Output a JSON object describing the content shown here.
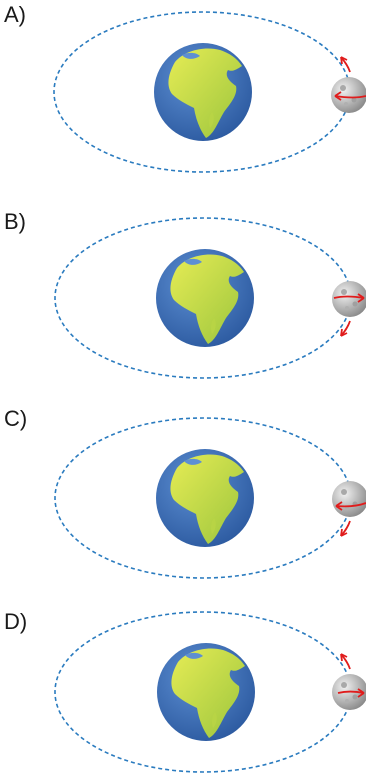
{
  "colors": {
    "orbit": "#2a7bbf",
    "arrow": "#e01c1c",
    "ocean": "#3d6fb6",
    "land": "#d9e34a",
    "land_dark": "#8fbf3a",
    "moon": "#c9c9c9"
  },
  "icons": {
    "planet": "earth-icon",
    "satellite": "moon-icon",
    "arrows": "arrow-icon"
  },
  "options": [
    {
      "label": "A)",
      "orbit_arrow": "up",
      "spin_arrow": "left"
    },
    {
      "label": "B)",
      "orbit_arrow": "down",
      "spin_arrow": "right"
    },
    {
      "label": "C)",
      "orbit_arrow": "down",
      "spin_arrow": "left"
    },
    {
      "label": "D)",
      "orbit_arrow": "up",
      "spin_arrow": "right"
    }
  ]
}
